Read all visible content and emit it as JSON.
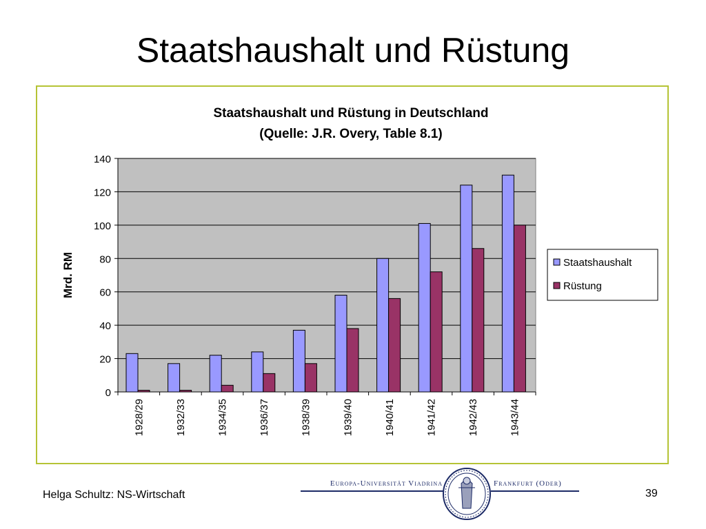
{
  "slide": {
    "title": "Staatshaushalt und Rüstung",
    "footer_author": "Helga Schultz: NS-Wirtschaft",
    "page_number": "39",
    "university_left": "Europa-Universität Viadrina",
    "university_right": "Frankfurt (Oder)"
  },
  "colors": {
    "staatshaushalt": "#9999ff",
    "ruestung": "#993366",
    "plot_background": "#c0c0c0",
    "frame_border": "#b5c335",
    "logo_blue": "#1c2a66"
  },
  "icons": {
    "seal": "university-seal-icon"
  },
  "chart_data": {
    "type": "bar",
    "title": "Staatshaushalt und Rüstung in Deutschland",
    "subtitle": "(Quelle: J.R. Overy, Table 8.1)",
    "xlabel": "",
    "ylabel": "Mrd. RM",
    "ylim": [
      0,
      140
    ],
    "yticks": [
      0,
      20,
      40,
      60,
      80,
      100,
      120,
      140
    ],
    "grid": true,
    "legend_position": "right",
    "categories": [
      "1928/29",
      "1932/33",
      "1934/35",
      "1936/37",
      "1938/39",
      "1939/40",
      "1940/41",
      "1941/42",
      "1942/43",
      "1943/44"
    ],
    "series": [
      {
        "name": "Staatshaushalt",
        "values": [
          23,
          17,
          22,
          24,
          37,
          58,
          80,
          101,
          124,
          130
        ]
      },
      {
        "name": "Rüstung",
        "values": [
          1,
          1,
          4,
          11,
          17,
          38,
          56,
          72,
          86,
          100
        ]
      }
    ]
  }
}
